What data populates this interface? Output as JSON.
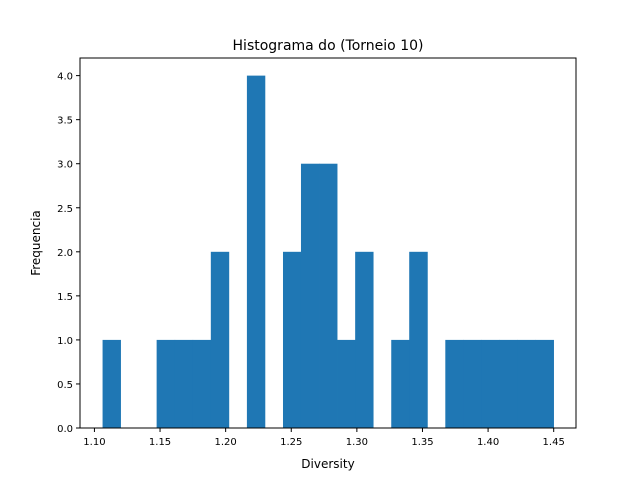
{
  "chart_data": {
    "type": "bar",
    "title": "Histograma do (Torneio 10)",
    "xlabel": "Diversity",
    "ylabel": "Frequencia",
    "bin_edges": [
      1.1062,
      1.1199,
      1.1337,
      1.1474,
      1.1612,
      1.1749,
      1.1887,
      1.2024,
      1.2162,
      1.2299,
      1.2437,
      1.2574,
      1.2712,
      1.2849,
      1.2987,
      1.3124,
      1.3262,
      1.3399,
      1.3537,
      1.3674,
      1.3812,
      1.3949,
      1.4087,
      1.4224,
      1.4362,
      1.4499
    ],
    "values": [
      1,
      0,
      0,
      1,
      1,
      1,
      2,
      0,
      4,
      0,
      2,
      3,
      3,
      1,
      2,
      0,
      1,
      2,
      0,
      1,
      1,
      1,
      1,
      1,
      1
    ],
    "xlim": [
      1.089,
      1.467
    ],
    "ylim": [
      0,
      4.2
    ],
    "xticks": [
      "1.10",
      "1.15",
      "1.20",
      "1.25",
      "1.30",
      "1.35",
      "1.40",
      "1.45"
    ],
    "xtick_values": [
      1.1,
      1.15,
      1.2,
      1.25,
      1.3,
      1.35,
      1.4,
      1.45
    ],
    "yticks": [
      "0.0",
      "0.5",
      "1.0",
      "1.5",
      "2.0",
      "2.5",
      "3.0",
      "3.5",
      "4.0"
    ],
    "ytick_values": [
      0,
      0.5,
      1.0,
      1.5,
      2.0,
      2.5,
      3.0,
      3.5,
      4.0
    ],
    "bar_color": "#1f77b4",
    "grid": false,
    "legend": "none"
  }
}
